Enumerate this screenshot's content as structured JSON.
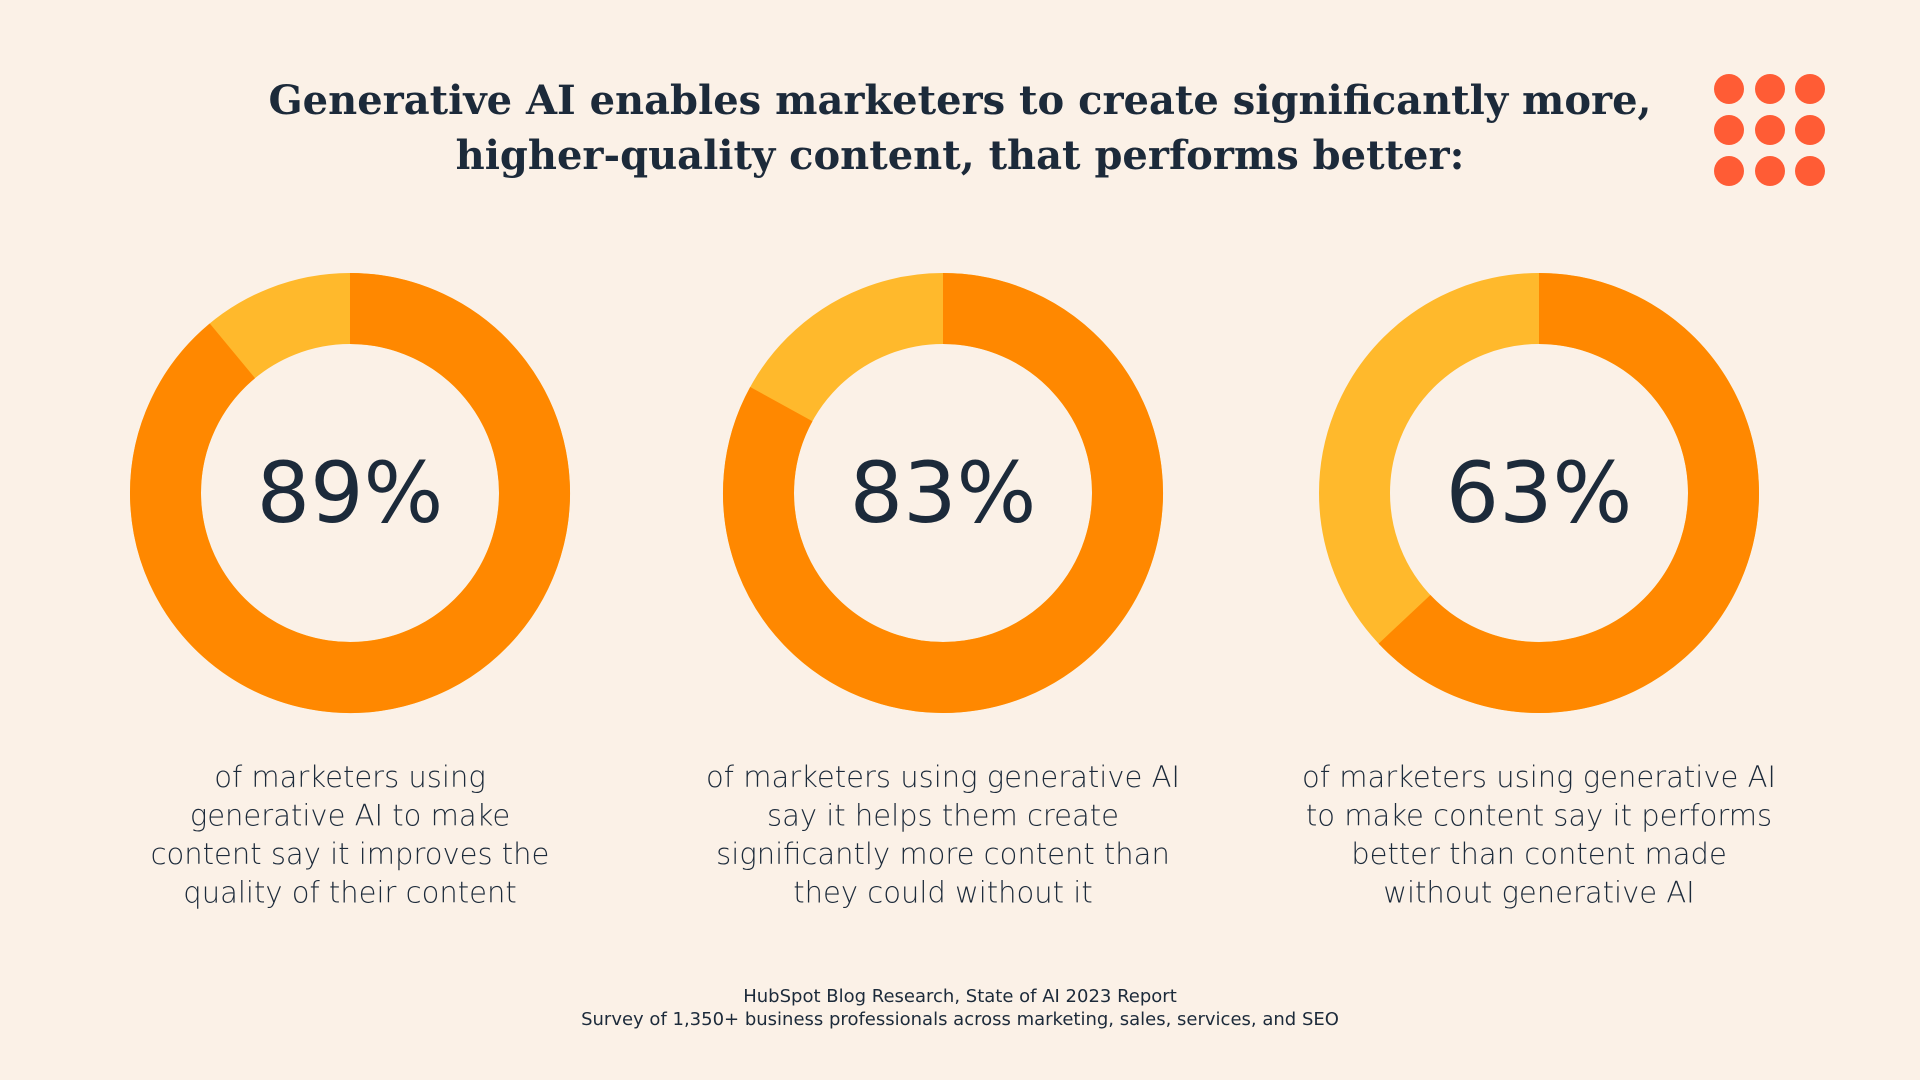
{
  "title": [
    "Generative AI enables marketers to create significantly more,",
    "higher-quality content, that performs better:"
  ],
  "source": [
    "HubSpot Blog Research, State of AI 2023 Report",
    "Survey of 1,350+ business professionals across marketing, sales, services, and SEO"
  ],
  "chart_data": [
    {
      "type": "donut",
      "values": [
        89
      ],
      "value_labels": [
        "89%"
      ],
      "color": "#ff8800",
      "track_color": "#ffb92c",
      "caption": [
        "of marketers using",
        "generative AI to make",
        "content say it improves the",
        "quality of their content"
      ]
    },
    {
      "type": "donut",
      "values": [
        83
      ],
      "value_labels": [
        "83%"
      ],
      "color": "#ff8800",
      "track_color": "#ffb92c",
      "caption": [
        "of marketers using generative AI",
        "say it helps them create",
        "significantly more content than",
        "they could without it"
      ]
    },
    {
      "type": "donut",
      "values": [
        63
      ],
      "value_labels": [
        "63%"
      ],
      "color": "#ff8800",
      "track_color": "#ffb92c",
      "caption": [
        "of marketers using generative AI",
        "to make content say it performs",
        "better than content made",
        "without generative AI"
      ]
    }
  ]
}
